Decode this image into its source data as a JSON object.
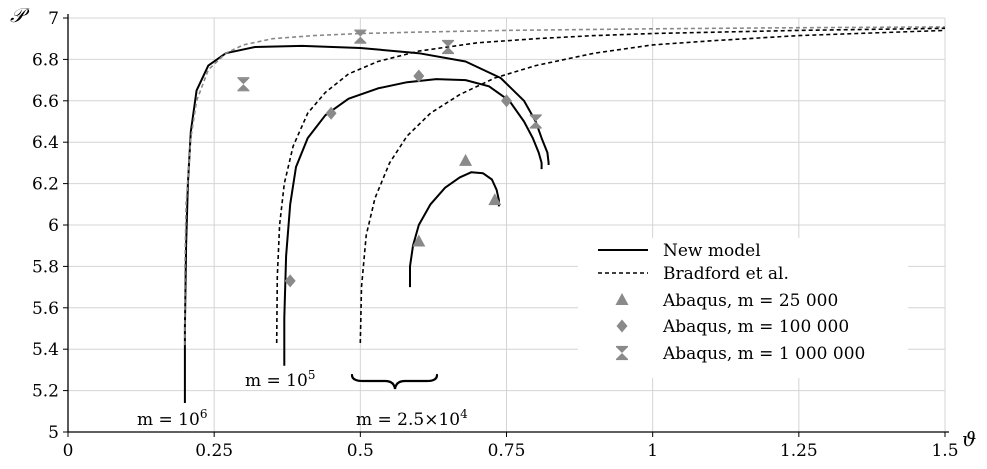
{
  "chart_data": {
    "type": "line",
    "title": "",
    "xlabel": "ϑ",
    "ylabel": "𝒫",
    "xlim": [
      0,
      1.5
    ],
    "ylim": [
      5,
      7
    ],
    "xticks": [
      0,
      0.25,
      0.5,
      0.75,
      1,
      1.25,
      1.5
    ],
    "xtick_labels": [
      "0",
      "0.25",
      "0.5",
      "0.75",
      "1",
      "1.25",
      "1.5"
    ],
    "yticks": [
      5,
      5.2,
      5.4,
      5.6,
      5.8,
      6,
      6.2,
      6.4,
      6.6,
      6.8,
      7
    ],
    "ytick_labels": [
      "5",
      "5.2",
      "5.4",
      "5.6",
      "5.8",
      "6",
      "6.2",
      "6.4",
      "6.6",
      "6.8",
      "7"
    ],
    "grid": true,
    "legend_position": "bottom-right",
    "series": [
      {
        "name": "New model",
        "group": "m = 10^6",
        "style": "solid",
        "color": "#000000",
        "x": [
          0.2,
          0.2,
          0.202,
          0.205,
          0.21,
          0.22,
          0.24,
          0.27,
          0.32,
          0.4,
          0.5,
          0.6,
          0.68,
          0.74,
          0.78,
          0.8,
          0.81,
          0.82,
          0.822,
          0.822
        ],
        "y": [
          5.14,
          5.5,
          5.9,
          6.2,
          6.45,
          6.65,
          6.77,
          6.83,
          6.86,
          6.865,
          6.855,
          6.83,
          6.79,
          6.71,
          6.6,
          6.5,
          6.42,
          6.35,
          6.3,
          6.29
        ]
      },
      {
        "name": "New model",
        "group": "m = 10^5",
        "style": "solid",
        "color": "#000000",
        "x": [
          0.37,
          0.37,
          0.373,
          0.38,
          0.39,
          0.41,
          0.44,
          0.48,
          0.53,
          0.58,
          0.63,
          0.68,
          0.72,
          0.755,
          0.78,
          0.795,
          0.805,
          0.81,
          0.81
        ],
        "y": [
          5.32,
          5.55,
          5.85,
          6.1,
          6.28,
          6.42,
          6.53,
          6.61,
          6.66,
          6.69,
          6.705,
          6.7,
          6.67,
          6.6,
          6.5,
          6.42,
          6.35,
          6.3,
          6.27
        ]
      },
      {
        "name": "New model",
        "group": "m = 2.5×10^4",
        "style": "solid",
        "color": "#000000",
        "x": [
          0.585,
          0.585,
          0.59,
          0.6,
          0.62,
          0.645,
          0.67,
          0.69,
          0.71,
          0.725,
          0.733,
          0.737,
          0.737
        ],
        "y": [
          5.7,
          5.8,
          5.9,
          6.0,
          6.1,
          6.18,
          6.23,
          6.255,
          6.25,
          6.22,
          6.17,
          6.12,
          6.09
        ]
      },
      {
        "name": "Bradford et al.",
        "group": "m = 10^6",
        "style": "dashed-gray",
        "color": "#888888",
        "x": [
          0.2,
          0.2,
          0.202,
          0.21,
          0.22,
          0.24,
          0.27,
          0.3,
          0.35,
          0.42,
          0.5,
          0.6,
          0.75,
          1.0,
          1.25,
          1.5
        ],
        "y": [
          5.42,
          5.8,
          6.1,
          6.42,
          6.6,
          6.75,
          6.83,
          6.87,
          6.9,
          6.915,
          6.925,
          6.932,
          6.94,
          6.948,
          6.953,
          6.957
        ]
      },
      {
        "name": "Bradford et al.",
        "group": "m = 10^5",
        "style": "dashed",
        "color": "#000000",
        "x": [
          0.357,
          0.358,
          0.362,
          0.37,
          0.385,
          0.41,
          0.44,
          0.48,
          0.53,
          0.6,
          0.7,
          0.8,
          0.9,
          1.0,
          1.25,
          1.5
        ],
        "y": [
          5.43,
          5.75,
          6.0,
          6.2,
          6.38,
          6.54,
          6.64,
          6.73,
          6.79,
          6.84,
          6.88,
          6.9,
          6.915,
          6.925,
          6.94,
          6.95
        ]
      },
      {
        "name": "Bradford et al.",
        "group": "m = 2.5×10^4",
        "style": "dashed",
        "color": "#000000",
        "x": [
          0.5,
          0.502,
          0.51,
          0.525,
          0.55,
          0.58,
          0.62,
          0.67,
          0.73,
          0.8,
          0.9,
          1.0,
          1.1,
          1.25,
          1.5
        ],
        "y": [
          5.43,
          5.7,
          5.95,
          6.13,
          6.3,
          6.43,
          6.54,
          6.63,
          6.71,
          6.77,
          6.83,
          6.87,
          6.89,
          6.915,
          6.94
        ]
      },
      {
        "name": "Abaqus, m = 25 000",
        "marker": "triangle",
        "color": "#8a8a8a",
        "x": [
          0.6,
          0.68,
          0.73
        ],
        "y": [
          5.92,
          6.31,
          6.12
        ]
      },
      {
        "name": "Abaqus, m = 100 000",
        "marker": "diamond",
        "color": "#8a8a8a",
        "x": [
          0.38,
          0.45,
          0.6,
          0.75
        ],
        "y": [
          5.73,
          6.54,
          6.72,
          6.6
        ]
      },
      {
        "name": "Abaqus, m = 1 000 000",
        "marker": "hourglass",
        "color": "#8a8a8a",
        "x": [
          0.3,
          0.5,
          0.65,
          0.8
        ],
        "y": [
          6.68,
          6.91,
          6.86,
          6.5
        ]
      }
    ],
    "legend": [
      {
        "label": "New model",
        "kind": "solid"
      },
      {
        "label": "Bradford et al.",
        "kind": "dashed"
      },
      {
        "label": "Abaqus, m = 25 000",
        "kind": "triangle"
      },
      {
        "label": "Abaqus, m = 100 000",
        "kind": "diamond"
      },
      {
        "label": "Abaqus, m = 1 000 000",
        "kind": "hourglass"
      }
    ],
    "annotations": [
      {
        "name": "annotation-m-1e6",
        "base": "m = 10",
        "exp": "6",
        "tail": "",
        "x": 0.2,
        "y": 5
      },
      {
        "name": "annotation-m-1e5",
        "base": "m = 10",
        "exp": "5",
        "tail": "",
        "x": 0.37,
        "y": 5.32
      },
      {
        "name": "annotation-m-2-5e4",
        "base": "m = 2.5×10",
        "exp": "4",
        "tail": "",
        "x": 0.56,
        "y": 5
      }
    ]
  }
}
